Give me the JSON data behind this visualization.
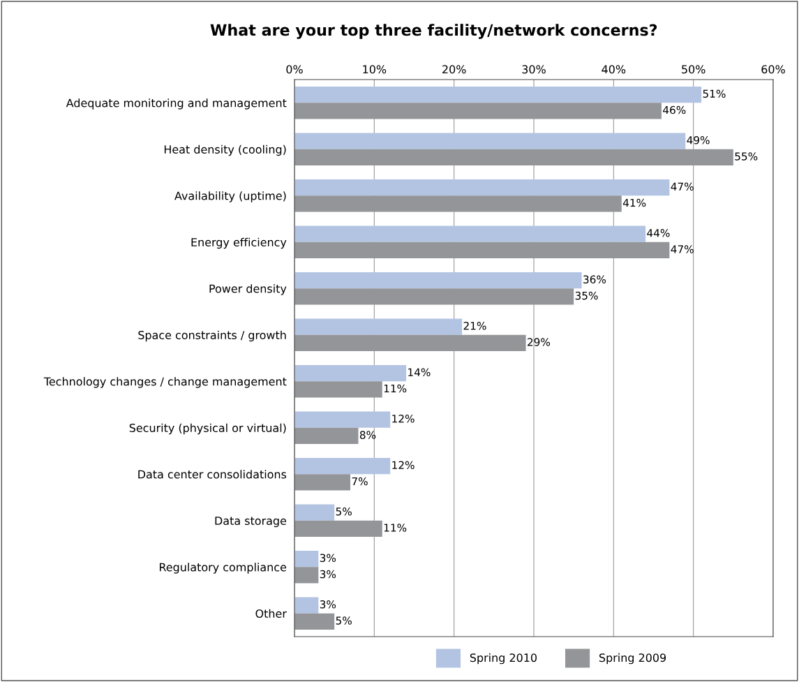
{
  "chart_data": {
    "type": "bar",
    "orientation": "horizontal",
    "title": "What are your top three facility/network concerns?",
    "categories": [
      "Adequate monitoring and management",
      "Heat density (cooling)",
      "Availability (uptime)",
      "Energy efficiency",
      "Power density",
      "Space constraints / growth",
      "Technology changes / change management",
      "Security (physical or virtual)",
      "Data center consolidations",
      "Data storage",
      "Regulatory compliance",
      "Other"
    ],
    "series": [
      {
        "name": "Spring 2010",
        "color": "#b3c4e2",
        "values": [
          51,
          49,
          47,
          44,
          36,
          21,
          14,
          12,
          12,
          5,
          3,
          3
        ],
        "value_labels": [
          "51%",
          "49%",
          "47%",
          "44%",
          "36%",
          "21%",
          "14%",
          "12%",
          "12%",
          "5%",
          "3%",
          "3%"
        ]
      },
      {
        "name": "Spring 2009",
        "color": "#939598",
        "values": [
          46,
          55,
          41,
          47,
          35,
          29,
          11,
          8,
          7,
          11,
          3,
          5
        ],
        "value_labels": [
          "46%",
          "55%",
          "41%",
          "47%",
          "35%",
          "29%",
          "11%",
          "8%",
          "7%",
          "11%",
          "3%",
          "5%"
        ]
      }
    ],
    "xlim": [
      0,
      60
    ],
    "xticks": [
      {
        "value": 0,
        "label": "0%"
      },
      {
        "value": 10,
        "label": "10%"
      },
      {
        "value": 20,
        "label": "20%"
      },
      {
        "value": 30,
        "label": "30%"
      },
      {
        "value": 40,
        "label": "40%"
      },
      {
        "value": 50,
        "label": "50%"
      },
      {
        "value": 60,
        "label": "60%"
      }
    ],
    "grid": "x",
    "legend": "bottom"
  }
}
